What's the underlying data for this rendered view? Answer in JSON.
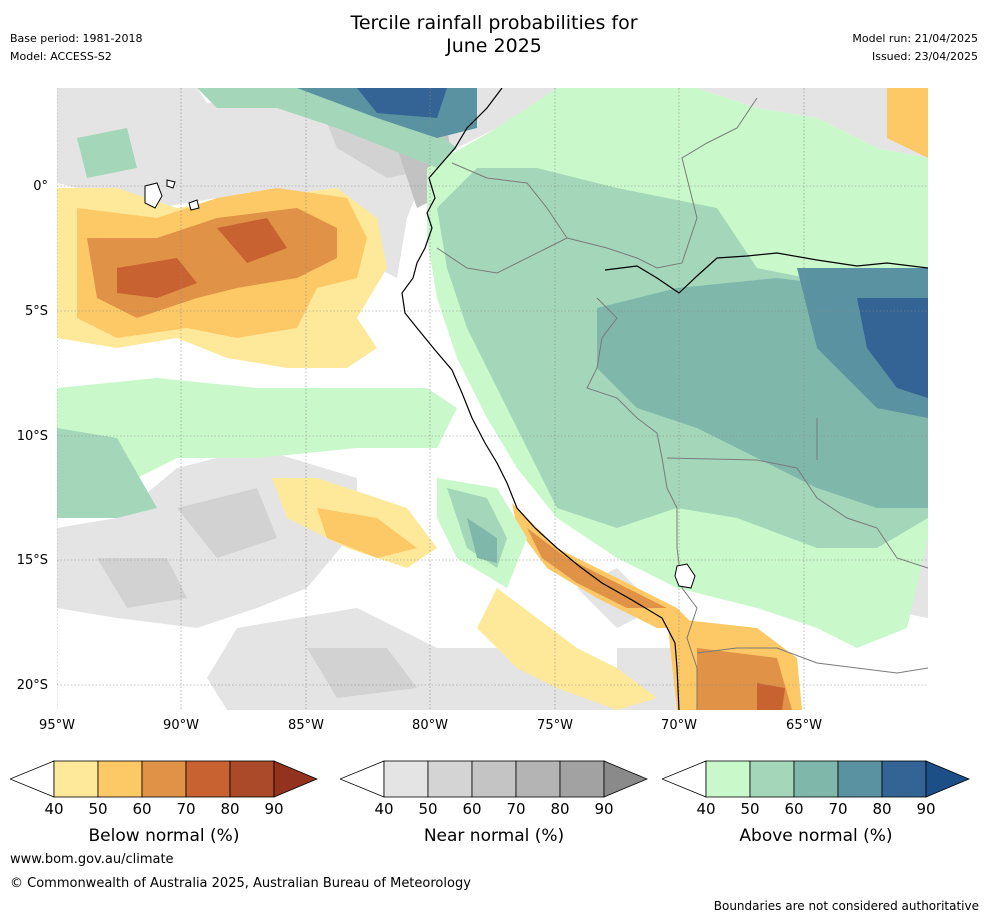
{
  "header": {
    "title_line1": "Tercile rainfall probabilities for",
    "title_line2": "June 2025",
    "base_period": "Base period: 1981-2018",
    "model": "Model: ACCESS-S2",
    "model_run": "Model run: 21/04/2025",
    "issued": "Issued: 23/04/2025"
  },
  "map": {
    "lat_labels": [
      "0°",
      "5°S",
      "10°S",
      "15°S",
      "20°S"
    ],
    "lon_labels": [
      "95°W",
      "90°W",
      "85°W",
      "80°W",
      "75°W",
      "70°W",
      "65°W"
    ],
    "extent": {
      "lon_min": -95.2,
      "lon_max": -60.2,
      "lat_min": -21,
      "lat_max": 4
    }
  },
  "colorbars": [
    {
      "label": "Below normal (%)",
      "ticks": [
        "40",
        "50",
        "60",
        "70",
        "80",
        "90"
      ],
      "colors": [
        "#ffffff",
        "#fee99b",
        "#fdc866",
        "#e09246",
        "#c96231",
        "#ab4a29",
        "#93321e"
      ]
    },
    {
      "label": "Near normal (%)",
      "ticks": [
        "40",
        "50",
        "60",
        "70",
        "80",
        "90"
      ],
      "colors": [
        "#ffffff",
        "#e4e4e4",
        "#d4d4d4",
        "#c4c4c4",
        "#b4b4b4",
        "#a2a2a2",
        "#8a8a8a"
      ]
    },
    {
      "label": "Above normal (%)",
      "ticks": [
        "40",
        "50",
        "60",
        "70",
        "80",
        "90"
      ],
      "colors": [
        "#ffffff",
        "#c9f9ca",
        "#a4d7ba",
        "#7fb7ab",
        "#5a92a1",
        "#336495",
        "#1b4f86"
      ]
    }
  ],
  "footer": {
    "website": "www.bom.gov.au/climate",
    "copyright": "© Commonwealth of Australia 2025, Australian Bureau of Meteorology",
    "note": "Boundaries are not considered authoritative"
  }
}
